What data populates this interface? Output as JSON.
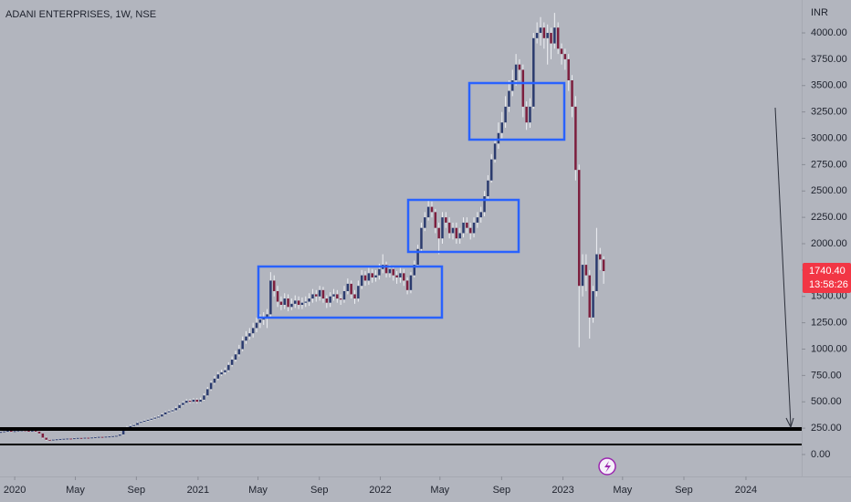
{
  "chart_data": {
    "type": "candlestick",
    "title": "ADANI ENTERPRISES, 1W, NSE",
    "currency": "INR",
    "up_color": "#2b3b6e",
    "down_color": "#7c1f3e",
    "wick_color": "#eef0f4",
    "last_price": {
      "value": 1740.4,
      "label": "1740.40"
    },
    "countdown": "13:58:26",
    "ylim": [
      -208,
      4312
    ],
    "yticks": [
      {
        "value": 0,
        "label": "0.00"
      },
      {
        "value": 250,
        "label": "250.00"
      },
      {
        "value": 500,
        "label": "500.00"
      },
      {
        "value": 750,
        "label": "750.00"
      },
      {
        "value": 1000,
        "label": "1000.00"
      },
      {
        "value": 1250,
        "label": "1250.00"
      },
      {
        "value": 1500,
        "label": "1500.00"
      },
      {
        "value": 1750,
        "label": "1750.00"
      },
      {
        "value": 2000,
        "label": "2000.00"
      },
      {
        "value": 2250,
        "label": "2250.00"
      },
      {
        "value": 2500,
        "label": "2500.00"
      },
      {
        "value": 2750,
        "label": "2750.00"
      },
      {
        "value": 3000,
        "label": "3000.00"
      },
      {
        "value": 3250,
        "label": "3250.00"
      },
      {
        "value": 3500,
        "label": "3500.00"
      },
      {
        "value": 3750,
        "label": "3750.00"
      },
      {
        "value": 4000,
        "label": "4000.00"
      }
    ],
    "xlim": [
      -4.2,
      224.5
    ],
    "xticks": [
      {
        "value": 0,
        "label": "2020"
      },
      {
        "value": 17.3,
        "label": "May"
      },
      {
        "value": 34.7,
        "label": "Sep"
      },
      {
        "value": 52.3,
        "label": "2021"
      },
      {
        "value": 69.4,
        "label": "May"
      },
      {
        "value": 86.9,
        "label": "Sep"
      },
      {
        "value": 104.3,
        "label": "2022"
      },
      {
        "value": 121.3,
        "label": "May"
      },
      {
        "value": 138.9,
        "label": "Sep"
      },
      {
        "value": 156.4,
        "label": "2023"
      },
      {
        "value": 173.4,
        "label": "May"
      },
      {
        "value": 190.9,
        "label": "Sep"
      },
      {
        "value": 208.6,
        "label": "2024"
      }
    ],
    "x": [
      -4,
      -3,
      -2,
      -1,
      0,
      1,
      2,
      3,
      4,
      5,
      6,
      7,
      8,
      9,
      10,
      11,
      12,
      13,
      14,
      15,
      16,
      17,
      18,
      19,
      20,
      21,
      22,
      23,
      24,
      25,
      26,
      27,
      28,
      29,
      30,
      31,
      32,
      33,
      34,
      35,
      36,
      37,
      38,
      39,
      40,
      41,
      42,
      43,
      44,
      45,
      46,
      47,
      48,
      49,
      50,
      51,
      52,
      53,
      54,
      55,
      56,
      57,
      58,
      59,
      60,
      61,
      62,
      63,
      64,
      65,
      66,
      67,
      68,
      69,
      70,
      71,
      72,
      73,
      74,
      75,
      76,
      77,
      78,
      79,
      80,
      81,
      82,
      83,
      84,
      85,
      86,
      87,
      88,
      89,
      90,
      91,
      92,
      93,
      94,
      95,
      96,
      97,
      98,
      99,
      100,
      101,
      102,
      103,
      104,
      105,
      106,
      107,
      108,
      109,
      110,
      111,
      112,
      113,
      114,
      115,
      116,
      117,
      118,
      119,
      120,
      121,
      122,
      123,
      124,
      125,
      126,
      127,
      128,
      129,
      130,
      131,
      132,
      133,
      134,
      135,
      136,
      137,
      138,
      139,
      140,
      141,
      142,
      143,
      144,
      145,
      146,
      147,
      148,
      149,
      150,
      151,
      152,
      153,
      154,
      155,
      156,
      157,
      158,
      159,
      160,
      161,
      162,
      163,
      164,
      165,
      166,
      167,
      168
    ],
    "open": [
      212,
      215,
      220,
      225,
      218,
      222,
      228,
      230,
      225,
      220,
      226,
      218,
      200,
      160,
      140,
      138,
      142,
      145,
      148,
      150,
      152,
      150,
      155,
      158,
      156,
      160,
      158,
      162,
      165,
      168,
      165,
      170,
      172,
      175,
      178,
      190,
      230,
      260,
      270,
      280,
      300,
      310,
      320,
      330,
      340,
      350,
      360,
      380,
      400,
      410,
      420,
      440,
      470,
      490,
      510,
      500,
      520,
      500,
      520,
      560,
      620,
      680,
      720,
      760,
      780,
      800,
      850,
      900,
      950,
      1000,
      1080,
      1120,
      1150,
      1200,
      1250,
      1280,
      1300,
      1330,
      1650,
      1550,
      1450,
      1420,
      1480,
      1400,
      1430,
      1460,
      1420,
      1440,
      1450,
      1480,
      1520,
      1500,
      1560,
      1480,
      1440,
      1500,
      1520,
      1480,
      1470,
      1550,
      1620,
      1520,
      1480,
      1600,
      1700,
      1650,
      1720,
      1680,
      1700,
      1760,
      1800,
      1720,
      1760,
      1700,
      1680,
      1720,
      1650,
      1560,
      1700,
      1800,
      1950,
      2150,
      2250,
      2350,
      2300,
      2150,
      2050,
      2250,
      2200,
      2100,
      2150,
      2050,
      2100,
      2200,
      2150,
      2100,
      2200,
      2250,
      2300,
      2450,
      2600,
      2800,
      2950,
      3050,
      3150,
      3300,
      3450,
      3550,
      3700,
      3650,
      3300,
      3150,
      3300,
      3950,
      4000,
      4050,
      3950,
      4000,
      3900,
      4050,
      3850,
      3800,
      3750,
      3550,
      3300,
      2700,
      1600,
      1800,
      1700,
      1300,
      1550,
      1900,
      1850
    ],
    "high": [
      220,
      225,
      230,
      229,
      226,
      232,
      236,
      234,
      228,
      230,
      229,
      222,
      204,
      168,
      146,
      146,
      149,
      152,
      154,
      156,
      156,
      158,
      162,
      162,
      164,
      164,
      166,
      169,
      172,
      172,
      174,
      176,
      179,
      182,
      195,
      240,
      270,
      285,
      290,
      310,
      320,
      330,
      340,
      352,
      362,
      372,
      392,
      412,
      425,
      435,
      455,
      485,
      505,
      525,
      525,
      535,
      535,
      540,
      580,
      640,
      700,
      745,
      785,
      805,
      825,
      875,
      930,
      985,
      1040,
      1120,
      1170,
      1200,
      1250,
      1300,
      1330,
      1350,
      1380,
      1730,
      1700,
      1600,
      1500,
      1530,
      1520,
      1480,
      1510,
      1500,
      1490,
      1500,
      1530,
      1570,
      1560,
      1600,
      1590,
      1510,
      1540,
      1570,
      1560,
      1520,
      1600,
      1670,
      1650,
      1560,
      1650,
      1750,
      1740,
      1770,
      1760,
      1750,
      1810,
      1900,
      1830,
      1800,
      1790,
      1740,
      1770,
      1760,
      1680,
      1730,
      1840,
      1990,
      2200,
      2300,
      2420,
      2400,
      2330,
      2200,
      2300,
      2300,
      2250,
      2200,
      2200,
      2150,
      2250,
      2250,
      2200,
      2250,
      2300,
      2350,
      2500,
      2650,
      2850,
      3000,
      3150,
      3250,
      3400,
      3550,
      3650,
      3800,
      3750,
      3700,
      3350,
      3380,
      4000,
      4100,
      4150,
      4100,
      4080,
      4050,
      4190,
      4100,
      3900,
      3850,
      3800,
      3600,
      3400,
      2750,
      1900,
      1900,
      1750,
      1600,
      2150,
      1960,
      1880
    ],
    "low": [
      208,
      212,
      216,
      214,
      214,
      219,
      224,
      221,
      215,
      217,
      212,
      195,
      150,
      130,
      132,
      135,
      139,
      142,
      145,
      147,
      146,
      147,
      152,
      152,
      153,
      155,
      155,
      159,
      162,
      161,
      162,
      167,
      169,
      172,
      175,
      186,
      226,
      255,
      264,
      275,
      292,
      302,
      312,
      322,
      332,
      342,
      352,
      372,
      390,
      400,
      410,
      430,
      460,
      480,
      485,
      490,
      485,
      490,
      510,
      550,
      605,
      665,
      705,
      745,
      760,
      785,
      835,
      880,
      930,
      980,
      1050,
      1090,
      1110,
      1160,
      1200,
      1230,
      1200,
      1300,
      1500,
      1400,
      1370,
      1380,
      1360,
      1370,
      1390,
      1380,
      1380,
      1400,
      1410,
      1440,
      1450,
      1460,
      1440,
      1390,
      1400,
      1460,
      1440,
      1420,
      1440,
      1520,
      1480,
      1430,
      1450,
      1570,
      1600,
      1610,
      1630,
      1640,
      1660,
      1720,
      1680,
      1680,
      1650,
      1620,
      1630,
      1600,
      1520,
      1530,
      1680,
      1780,
      1930,
      2120,
      2220,
      2250,
      2100,
      1900,
      2000,
      2150,
      2050,
      2040,
      2000,
      2000,
      2060,
      2100,
      2040,
      2060,
      2150,
      2200,
      2260,
      2420,
      2580,
      2770,
      2900,
      3000,
      3100,
      3250,
      3400,
      3500,
      3550,
      3200,
      3080,
      3100,
      3280,
      3900,
      3880,
      3850,
      3700,
      3750,
      3850,
      3800,
      3700,
      3650,
      3450,
      3200,
      2600,
      1017,
      1500,
      1550,
      1100,
      1250,
      1500,
      1750,
      1620
    ],
    "close": [
      215,
      220,
      225,
      218,
      222,
      228,
      230,
      225,
      220,
      226,
      218,
      200,
      160,
      140,
      138,
      142,
      145,
      148,
      150,
      152,
      150,
      155,
      158,
      156,
      160,
      158,
      162,
      165,
      168,
      165,
      170,
      172,
      175,
      178,
      190,
      230,
      260,
      270,
      280,
      300,
      310,
      320,
      330,
      340,
      350,
      360,
      380,
      400,
      410,
      420,
      440,
      470,
      490,
      510,
      500,
      520,
      500,
      520,
      560,
      620,
      680,
      720,
      760,
      780,
      800,
      850,
      900,
      950,
      1000,
      1080,
      1120,
      1150,
      1200,
      1250,
      1280,
      1300,
      1330,
      1650,
      1550,
      1450,
      1420,
      1480,
      1400,
      1430,
      1460,
      1420,
      1440,
      1450,
      1480,
      1520,
      1500,
      1560,
      1480,
      1440,
      1500,
      1520,
      1480,
      1470,
      1550,
      1620,
      1520,
      1480,
      1600,
      1700,
      1650,
      1720,
      1680,
      1700,
      1760,
      1800,
      1720,
      1760,
      1700,
      1680,
      1720,
      1650,
      1560,
      1700,
      1800,
      1950,
      2150,
      2250,
      2350,
      2300,
      2150,
      2050,
      2250,
      2200,
      2100,
      2150,
      2050,
      2100,
      2200,
      2150,
      2100,
      2200,
      2250,
      2300,
      2450,
      2600,
      2800,
      2950,
      3050,
      3150,
      3300,
      3450,
      3550,
      3700,
      3650,
      3300,
      3150,
      3300,
      3950,
      4000,
      4050,
      3950,
      4000,
      3900,
      4050,
      3850,
      3800,
      3750,
      3550,
      3300,
      2700,
      1600,
      1800,
      1700,
      1300,
      1550,
      1900,
      1850,
      1740
    ]
  }
}
